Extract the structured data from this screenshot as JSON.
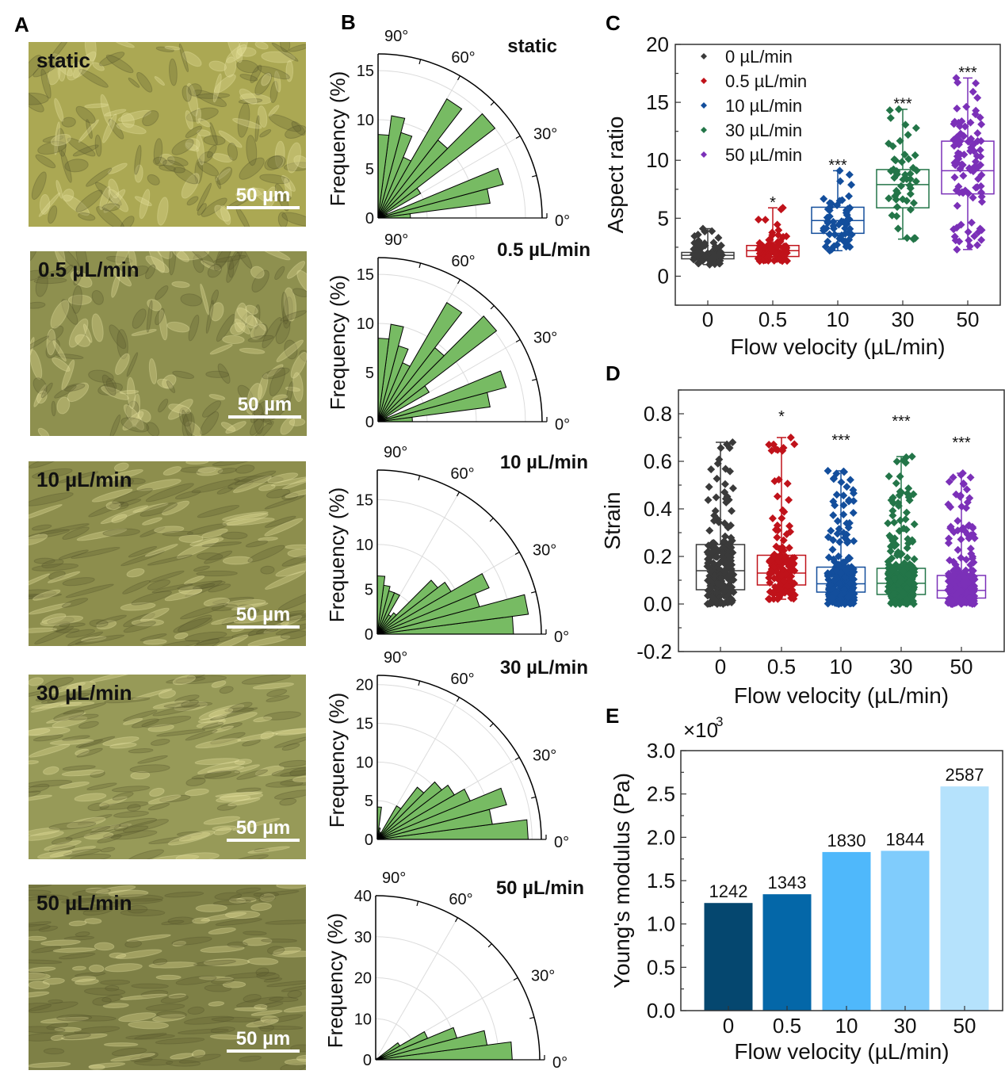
{
  "panel_labels": {
    "a": "A",
    "b": "B",
    "c": "C",
    "d": "D",
    "e": "E"
  },
  "panel_a": {
    "images": [
      {
        "label": "static",
        "scale_bar": "50 µm"
      },
      {
        "label": "0.5 µL/min",
        "scale_bar": "50 µm"
      },
      {
        "label": "10 µL/min",
        "scale_bar": "50 µm"
      },
      {
        "label": "30 µL/min",
        "scale_bar": "50 µm"
      },
      {
        "label": "50 µL/min",
        "scale_bar": "50 µm"
      }
    ]
  },
  "chart_data": [
    {
      "type": "polar-bar",
      "title": "static",
      "ylabel": "Frequency (%)",
      "r_ticks": [
        "0",
        "5",
        "10",
        "15"
      ],
      "r_tick_values": [
        0,
        5,
        10,
        15
      ],
      "r_max": 16.7,
      "angle_labels": [
        "90°",
        "60°",
        "30°",
        "0°"
      ],
      "bin_width_deg": 7.5,
      "values": [
        3.3,
        11.5,
        13.2,
        1.0,
        5.0,
        15.0,
        10.0,
        14.0,
        6.7,
        9.0,
        10.5,
        8.5
      ],
      "color": "#77bb63"
    },
    {
      "type": "polar-bar",
      "title": "0.5 µL/min",
      "ylabel": "Frequency (%)",
      "r_ticks": [
        "0",
        "5",
        "10",
        "15"
      ],
      "r_tick_values": [
        0,
        5,
        10,
        15
      ],
      "r_max": 16.7,
      "angle_labels": [
        "90°",
        "60°",
        "30°",
        "0°"
      ],
      "bin_width_deg": 7.5,
      "values": [
        3.5,
        11.5,
        13.5,
        1.0,
        6.0,
        15.2,
        9.5,
        14.0,
        6.5,
        8.0,
        10.0,
        8.5
      ],
      "color": "#77bb63"
    },
    {
      "type": "polar-bar",
      "title": "10 µL/min",
      "ylabel": "Frequency (%)",
      "r_ticks": [
        "0",
        "5",
        "10",
        "15"
      ],
      "r_tick_values": [
        0,
        5,
        10,
        15
      ],
      "r_max": 18.3,
      "angle_labels": [
        "90°",
        "60°",
        "30°",
        "0°"
      ],
      "bin_width_deg": 7.5,
      "values": [
        15.2,
        17.0,
        11.8,
        13.5,
        9.5,
        8.5,
        3.0,
        2.5,
        5.0,
        5.0,
        5.5,
        6.5
      ],
      "color": "#77bb63"
    },
    {
      "type": "polar-bar",
      "title": "30 µL/min",
      "ylabel": "Frequency (%)",
      "r_ticks": [
        "0",
        "5",
        "10",
        "15",
        "20"
      ],
      "r_tick_values": [
        0,
        5,
        10,
        15,
        20
      ],
      "r_max": 21.2,
      "angle_labels": [
        "90°",
        "60°",
        "30°",
        "0°"
      ],
      "bin_width_deg": 7.5,
      "values": [
        19.5,
        15.0,
        17.3,
        13.0,
        11.5,
        10.5,
        8.5,
        5.0,
        1.0,
        0.5,
        1.5,
        4.2
      ],
      "color": "#77bb63"
    },
    {
      "type": "polar-bar",
      "title": "50 µL/min",
      "ylabel": "Frequency (%)",
      "r_ticks": [
        "0",
        "10",
        "20",
        "30",
        "40"
      ],
      "r_tick_values": [
        0,
        10,
        20,
        30,
        40
      ],
      "r_max": 40,
      "angle_labels": [
        "90°",
        "60°",
        "30°",
        "0°"
      ],
      "bin_width_deg": 7.5,
      "values": [
        33.3,
        27.4,
        20.5,
        13.7,
        6.8,
        0.5,
        0,
        0,
        0,
        0,
        0,
        0
      ],
      "color": "#77bb63"
    },
    {
      "type": "box",
      "panel": "C",
      "xlabel": "Flow velocity (µL/min)",
      "ylabel": "Aspect ratio",
      "categories": [
        "0",
        "0.5",
        "10",
        "30",
        "50"
      ],
      "ylim": [
        -2.5,
        20
      ],
      "yticks": [
        "0",
        "5",
        "10",
        "15",
        "20"
      ],
      "ytick_values": [
        0,
        5,
        10,
        15,
        20
      ],
      "minor_step": 2.5,
      "legend": {
        "placement": "top-left",
        "entries": [
          "0 µL/min",
          "0.5 µL/min",
          "10 µL/min",
          "30 µL/min",
          "50 µL/min"
        ]
      },
      "series": [
        {
          "name": "0 µL/min",
          "color": "#3a3a3a",
          "min": 1.0,
          "q1": 1.5,
          "median": 1.8,
          "q3": 2.05,
          "max": 4.1,
          "n": 90,
          "significance": "",
          "sig_y": 0
        },
        {
          "name": "0.5 µL/min",
          "color": "#c0121a",
          "min": 1.3,
          "q1": 1.7,
          "median": 2.2,
          "q3": 2.65,
          "max": 5.9,
          "n": 90,
          "significance": "*",
          "sig_y": 6.6
        },
        {
          "name": "10 µL/min",
          "color": "#134e9c",
          "min": 2.2,
          "q1": 3.7,
          "median": 4.8,
          "q3": 5.95,
          "max": 9.1,
          "n": 60,
          "significance": "***",
          "sig_y": 9.8
        },
        {
          "name": "30 µL/min",
          "color": "#237548",
          "min": 3.2,
          "q1": 5.9,
          "median": 7.9,
          "q3": 9.2,
          "max": 14.4,
          "n": 50,
          "significance": "***",
          "sig_y": 15.1
        },
        {
          "name": "50 µL/min",
          "color": "#7b30b8",
          "min": 2.3,
          "q1": 7.1,
          "median": 9.1,
          "q3": 11.65,
          "max": 17.1,
          "n": 100,
          "significance": "***",
          "sig_y": 17.8
        }
      ]
    },
    {
      "type": "box",
      "panel": "D",
      "xlabel": "Flow velocity (µL/min)",
      "ylabel": "Strain",
      "categories": [
        "0",
        "0.5",
        "10",
        "30",
        "50"
      ],
      "ylim": [
        -0.2,
        0.9
      ],
      "yticks": [
        "-0.2",
        "0.0",
        "0.2",
        "0.4",
        "0.6",
        "0.8"
      ],
      "ytick_values": [
        -0.2,
        0,
        0.2,
        0.4,
        0.6,
        0.8
      ],
      "minor_step": 0.1,
      "series": [
        {
          "name": "0 µL/min",
          "color": "#3a3a3a",
          "min": 0.0,
          "q1": 0.06,
          "median": 0.14,
          "q3": 0.25,
          "max": 0.68,
          "n": 220,
          "significance": "",
          "sig_y": 0
        },
        {
          "name": "0.5 µL/min",
          "color": "#c0121a",
          "min": 0.02,
          "q1": 0.08,
          "median": 0.13,
          "q3": 0.205,
          "max": 0.7,
          "n": 150,
          "significance": "*",
          "sig_y": 0.8
        },
        {
          "name": "10 µL/min",
          "color": "#134e9c",
          "min": 0.0,
          "q1": 0.05,
          "median": 0.085,
          "q3": 0.155,
          "max": 0.56,
          "n": 220,
          "significance": "***",
          "sig_y": 0.7
        },
        {
          "name": "30 µL/min",
          "color": "#237548",
          "min": 0.0,
          "q1": 0.04,
          "median": 0.087,
          "q3": 0.15,
          "max": 0.62,
          "n": 260,
          "significance": "***",
          "sig_y": 0.78
        },
        {
          "name": "50 µL/min",
          "color": "#7b30b8",
          "min": 0.0,
          "q1": 0.025,
          "median": 0.057,
          "q3": 0.12,
          "max": 0.55,
          "n": 260,
          "significance": "***",
          "sig_y": 0.69
        }
      ]
    },
    {
      "type": "bar",
      "panel": "E",
      "xlabel": "Flow velocity (µL/min)",
      "ylabel": "Young's modulus (Pa)",
      "multiplier_label": "×10",
      "multiplier_exp": "3",
      "categories": [
        "0",
        "0.5",
        "10",
        "30",
        "50"
      ],
      "values": [
        1242,
        1343,
        1830,
        1844,
        2587
      ],
      "value_labels": [
        "1242",
        "1343",
        "1830",
        "1844",
        "2587"
      ],
      "colors": [
        "#05476f",
        "#0467a8",
        "#4fb8fb",
        "#80ccfc",
        "#b5e2fc"
      ],
      "ylim": [
        0,
        3000
      ],
      "yticks": [
        "0.0",
        "0.5",
        "1.0",
        "1.5",
        "2.0",
        "2.5",
        "3.0"
      ],
      "ytick_values": [
        0,
        500,
        1000,
        1500,
        2000,
        2500,
        3000
      ],
      "minor_step": 250
    }
  ]
}
